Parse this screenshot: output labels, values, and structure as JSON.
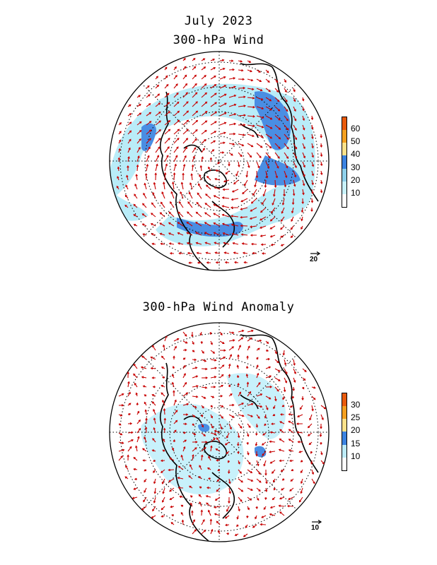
{
  "titles": {
    "period": "July 2023",
    "map1": "300-hPa Wind",
    "map2": "300-hPa Wind Anomaly"
  },
  "map1": {
    "colorbar_labels": [
      "60",
      "50",
      "40",
      "30",
      "20",
      "10"
    ],
    "colorbar_colors": [
      "#e85a0c",
      "#f4a020",
      "#fde18a",
      "#3b82e0",
      "#8fd0ea",
      "#c8f1fb",
      "#ffffff"
    ],
    "reference_vector": "20"
  },
  "map2": {
    "colorbar_labels": [
      "30",
      "25",
      "20",
      "15",
      "10"
    ],
    "colorbar_colors": [
      "#e85a0c",
      "#f4a020",
      "#fde18a",
      "#3b82e0",
      "#bdebf7",
      "#ffffff"
    ],
    "reference_vector": "10"
  },
  "colors": {
    "vector": "#c80000",
    "land": "#000000",
    "shade_light": "#b9ecf8",
    "shade_mid": "#4a8ee3"
  }
}
